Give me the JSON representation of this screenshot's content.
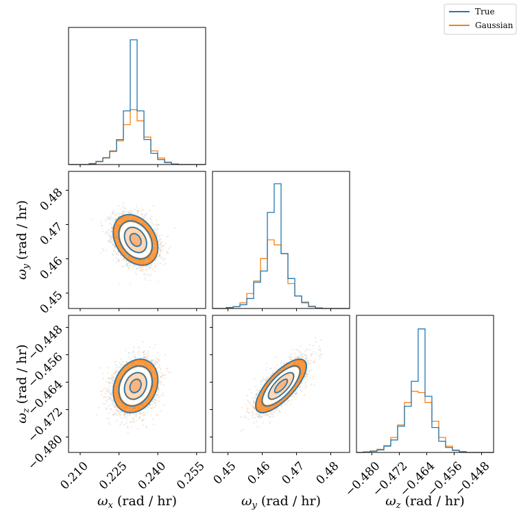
{
  "colors": {
    "true": "#1f77b4",
    "gaussian": "#ff7f0e"
  },
  "legend": {
    "entries": [
      "True",
      "Gaussian"
    ]
  },
  "chart_data": {
    "type": "corner",
    "variables": [
      {
        "key": "wx",
        "symbol": "ω",
        "sub": "x",
        "unit": " (rad / hr)",
        "range": [
          0.2055,
          0.2585
        ],
        "ticks": [
          0.21,
          0.225,
          0.24,
          0.255
        ],
        "tick_labels": [
          "0.210",
          "0.225",
          "0.240",
          "0.255"
        ],
        "mean": 0.2314,
        "sd": 0.0042
      },
      {
        "key": "wy",
        "symbol": "ω",
        "sub": "y",
        "unit": " (rad / hr)",
        "range": [
          0.4455,
          0.4855
        ],
        "ticks": [
          0.45,
          0.46,
          0.47,
          0.48
        ],
        "tick_labels": [
          "0.45",
          "0.46",
          "0.47",
          "0.48"
        ],
        "mean": 0.4655,
        "sd": 0.0036
      },
      {
        "key": "wz",
        "symbol": "ω",
        "sub": "z",
        "unit": " (rad / hr)",
        "range": [
          -0.4845,
          -0.4445
        ],
        "ticks": [
          -0.48,
          -0.472,
          -0.464,
          -0.456,
          -0.448
        ],
        "tick_labels": [
          "−0.480",
          "−0.472",
          "−0.464",
          "−0.456",
          "−0.448"
        ],
        "mean": -0.4651,
        "sd": 0.0038
      }
    ],
    "correlations": {
      "wx_wy": -0.3,
      "wx_wz": 0.22,
      "wy_wz": 0.74
    },
    "histograms": [
      {
        "variable": "wx",
        "edges": [
          0.2055,
          0.20815,
          0.2108,
          0.21345,
          0.2161,
          0.21875,
          0.2214,
          0.22405,
          0.2267,
          0.22935,
          0.232,
          0.23465,
          0.2373,
          0.23995,
          0.2426,
          0.24525,
          0.2479,
          0.25055,
          0.2532,
          0.25585,
          0.2585
        ],
        "true": [
          0,
          0,
          0,
          0.008,
          0.025,
          0.055,
          0.105,
          0.2,
          0.43,
          1.0,
          0.43,
          0.2,
          0.09,
          0.04,
          0.015,
          0.004,
          0,
          0,
          0,
          0
        ],
        "gaussian": [
          0,
          0,
          0,
          0.005,
          0.022,
          0.052,
          0.11,
          0.19,
          0.32,
          0.44,
          0.35,
          0.22,
          0.11,
          0.052,
          0.02,
          0.004,
          0,
          0,
          0,
          0
        ]
      },
      {
        "variable": "wy",
        "edges": [
          0.4455,
          0.4475,
          0.4495,
          0.4515,
          0.4535,
          0.4555,
          0.4575,
          0.4595,
          0.4615,
          0.4635,
          0.4655,
          0.4675,
          0.4695,
          0.4715,
          0.4735,
          0.4755,
          0.4775,
          0.4795,
          0.4815,
          0.4835,
          0.4855
        ],
        "true": [
          0,
          0,
          0.008,
          0.015,
          0.03,
          0.08,
          0.21,
          0.3,
          0.77,
          1.0,
          0.44,
          0.24,
          0.1,
          0.05,
          0.018,
          0.004,
          0,
          0,
          0,
          0
        ],
        "gaussian": [
          0,
          0,
          0.006,
          0.014,
          0.045,
          0.12,
          0.22,
          0.4,
          0.55,
          0.51,
          0.44,
          0.2,
          0.1,
          0.045,
          0.014,
          0.005,
          0,
          0,
          0,
          0
        ]
      },
      {
        "variable": "wz",
        "edges": [
          -0.4845,
          -0.4825,
          -0.4805,
          -0.4785,
          -0.4765,
          -0.4745,
          -0.4725,
          -0.4705,
          -0.4685,
          -0.4665,
          -0.4645,
          -0.4625,
          -0.4605,
          -0.4585,
          -0.4565,
          -0.4545,
          -0.4525,
          -0.4505,
          -0.4485,
          -0.4465,
          -0.4445
        ],
        "true": [
          0,
          0.004,
          0.01,
          0.02,
          0.05,
          0.1,
          0.21,
          0.37,
          0.57,
          0.99,
          0.45,
          0.2,
          0.09,
          0.04,
          0.015,
          0.006,
          0,
          0,
          0,
          0
        ],
        "gaussian": [
          0,
          0.004,
          0.012,
          0.025,
          0.055,
          0.12,
          0.22,
          0.4,
          0.49,
          0.48,
          0.4,
          0.25,
          0.12,
          0.05,
          0.02,
          0.006,
          0,
          0,
          0,
          0
        ]
      }
    ]
  }
}
